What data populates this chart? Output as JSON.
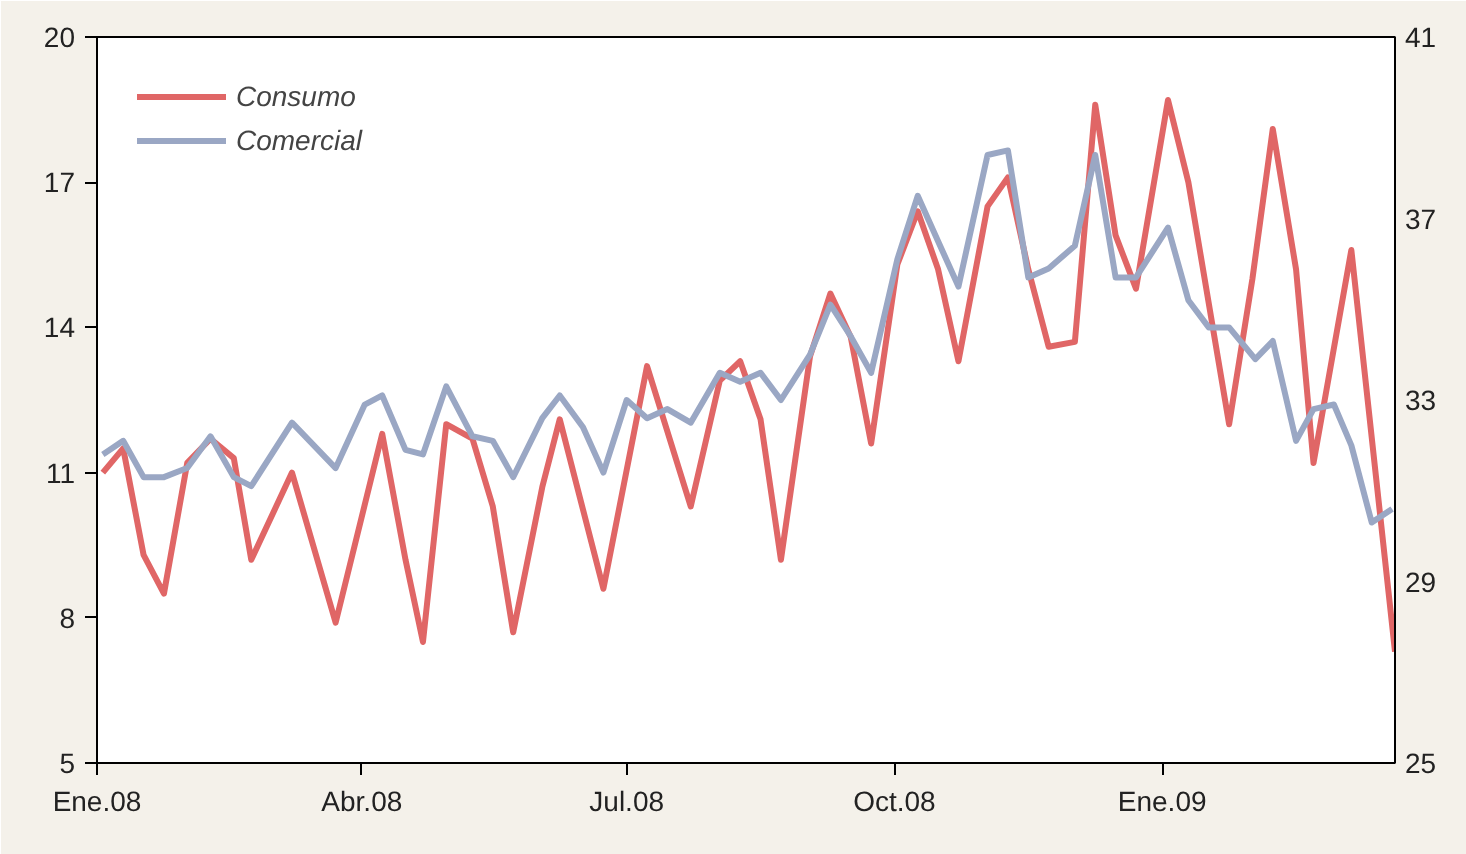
{
  "chart_data": {
    "type": "line",
    "xlim": [
      "2008-01-01",
      "2009-03-22"
    ],
    "xticks": [
      {
        "value": "2008-01-01",
        "label": "Ene.08"
      },
      {
        "value": "2008-04-01",
        "label": "Abr.08"
      },
      {
        "value": "2008-07-01",
        "label": "Jul.08"
      },
      {
        "value": "2008-10-01",
        "label": "Oct.08"
      },
      {
        "value": "2009-01-01",
        "label": "Ene.09"
      }
    ],
    "ylim": [
      5,
      20
    ],
    "yticks": [
      5,
      8,
      11,
      14,
      17,
      20
    ],
    "y2lim": [
      25,
      41
    ],
    "y2ticks": [
      25,
      29,
      33,
      37,
      41
    ],
    "grid": false,
    "legend": "top left",
    "marker": "none",
    "line_style": "solid",
    "series": [
      {
        "name": "Consumo",
        "color": "#e06666",
        "x": [
          "2008-01-03",
          "2008-01-10",
          "2008-01-17",
          "2008-01-24",
          "2008-02-01",
          "2008-02-09",
          "2008-02-17",
          "2008-02-23",
          "2008-03-08",
          "2008-03-23",
          "2008-04-08",
          "2008-04-16",
          "2008-04-22",
          "2008-04-30",
          "2008-05-09",
          "2008-05-16",
          "2008-05-23",
          "2008-06-02",
          "2008-06-08",
          "2008-06-23",
          "2008-07-08",
          "2008-07-23",
          "2008-08-02",
          "2008-08-09",
          "2008-08-16",
          "2008-08-23",
          "2008-09-02",
          "2008-09-09",
          "2008-09-16",
          "2008-09-23",
          "2008-10-02",
          "2008-10-09",
          "2008-10-16",
          "2008-10-23",
          "2008-11-02",
          "2008-11-09",
          "2008-11-16",
          "2008-11-23",
          "2008-12-02",
          "2008-12-09",
          "2008-12-16",
          "2008-12-23",
          "2009-01-03",
          "2009-01-10",
          "2009-01-24",
          "2009-02-01",
          "2009-02-08",
          "2009-02-16",
          "2009-02-22",
          "2009-03-07",
          "2009-03-22"
        ],
        "values": [
          11.0,
          11.5,
          9.3,
          8.5,
          11.2,
          11.7,
          11.3,
          9.2,
          11.0,
          7.9,
          11.8,
          9.2,
          7.5,
          12.0,
          11.7,
          10.3,
          7.7,
          10.7,
          12.1,
          8.6,
          13.2,
          10.3,
          12.9,
          13.3,
          12.1,
          9.2,
          13.4,
          14.7,
          13.8,
          11.6,
          15.3,
          16.4,
          15.2,
          13.3,
          16.5,
          17.1,
          15.2,
          13.6,
          13.7,
          18.6,
          15.9,
          14.8,
          18.7,
          17.0,
          12.0,
          15.0,
          18.1,
          15.2,
          11.2,
          15.6,
          7.3
        ]
      },
      {
        "name": "Comercial",
        "color": "#9aa7c4",
        "axis": "y2",
        "x": [
          "2008-01-03",
          "2008-01-10",
          "2008-01-17",
          "2008-01-24",
          "2008-02-01",
          "2008-02-09",
          "2008-02-17",
          "2008-02-23",
          "2008-03-08",
          "2008-03-23",
          "2008-04-02",
          "2008-04-08",
          "2008-04-16",
          "2008-04-22",
          "2008-04-30",
          "2008-05-09",
          "2008-05-16",
          "2008-05-23",
          "2008-06-02",
          "2008-06-08",
          "2008-06-16",
          "2008-06-23",
          "2008-07-01",
          "2008-07-08",
          "2008-07-15",
          "2008-07-23",
          "2008-08-02",
          "2008-08-09",
          "2008-08-16",
          "2008-08-23",
          "2008-09-02",
          "2008-09-09",
          "2008-09-16",
          "2008-09-23",
          "2008-10-02",
          "2008-10-09",
          "2008-10-16",
          "2008-10-23",
          "2008-11-02",
          "2008-11-09",
          "2008-11-16",
          "2008-11-23",
          "2008-12-02",
          "2008-12-09",
          "2008-12-16",
          "2008-12-23",
          "2009-01-03",
          "2009-01-10",
          "2009-01-17",
          "2009-01-24",
          "2009-02-02",
          "2009-02-08",
          "2009-02-16",
          "2009-02-22",
          "2009-03-01",
          "2009-03-07",
          "2009-03-14",
          "2009-03-21"
        ],
        "values": [
          31.8,
          32.1,
          31.3,
          31.3,
          31.5,
          32.2,
          31.3,
          31.1,
          32.5,
          31.5,
          32.9,
          33.1,
          31.9,
          31.8,
          33.3,
          32.2,
          32.1,
          31.3,
          32.6,
          33.1,
          32.4,
          31.4,
          33.0,
          32.6,
          32.8,
          32.5,
          33.6,
          33.4,
          33.6,
          33.0,
          34.0,
          35.1,
          34.4,
          33.6,
          36.1,
          37.5,
          36.5,
          35.5,
          38.4,
          38.5,
          35.7,
          35.9,
          36.4,
          38.4,
          35.7,
          35.7,
          36.8,
          35.2,
          34.6,
          34.6,
          33.9,
          34.3,
          32.1,
          32.8,
          32.9,
          32.0,
          30.3,
          30.6
        ]
      }
    ]
  }
}
